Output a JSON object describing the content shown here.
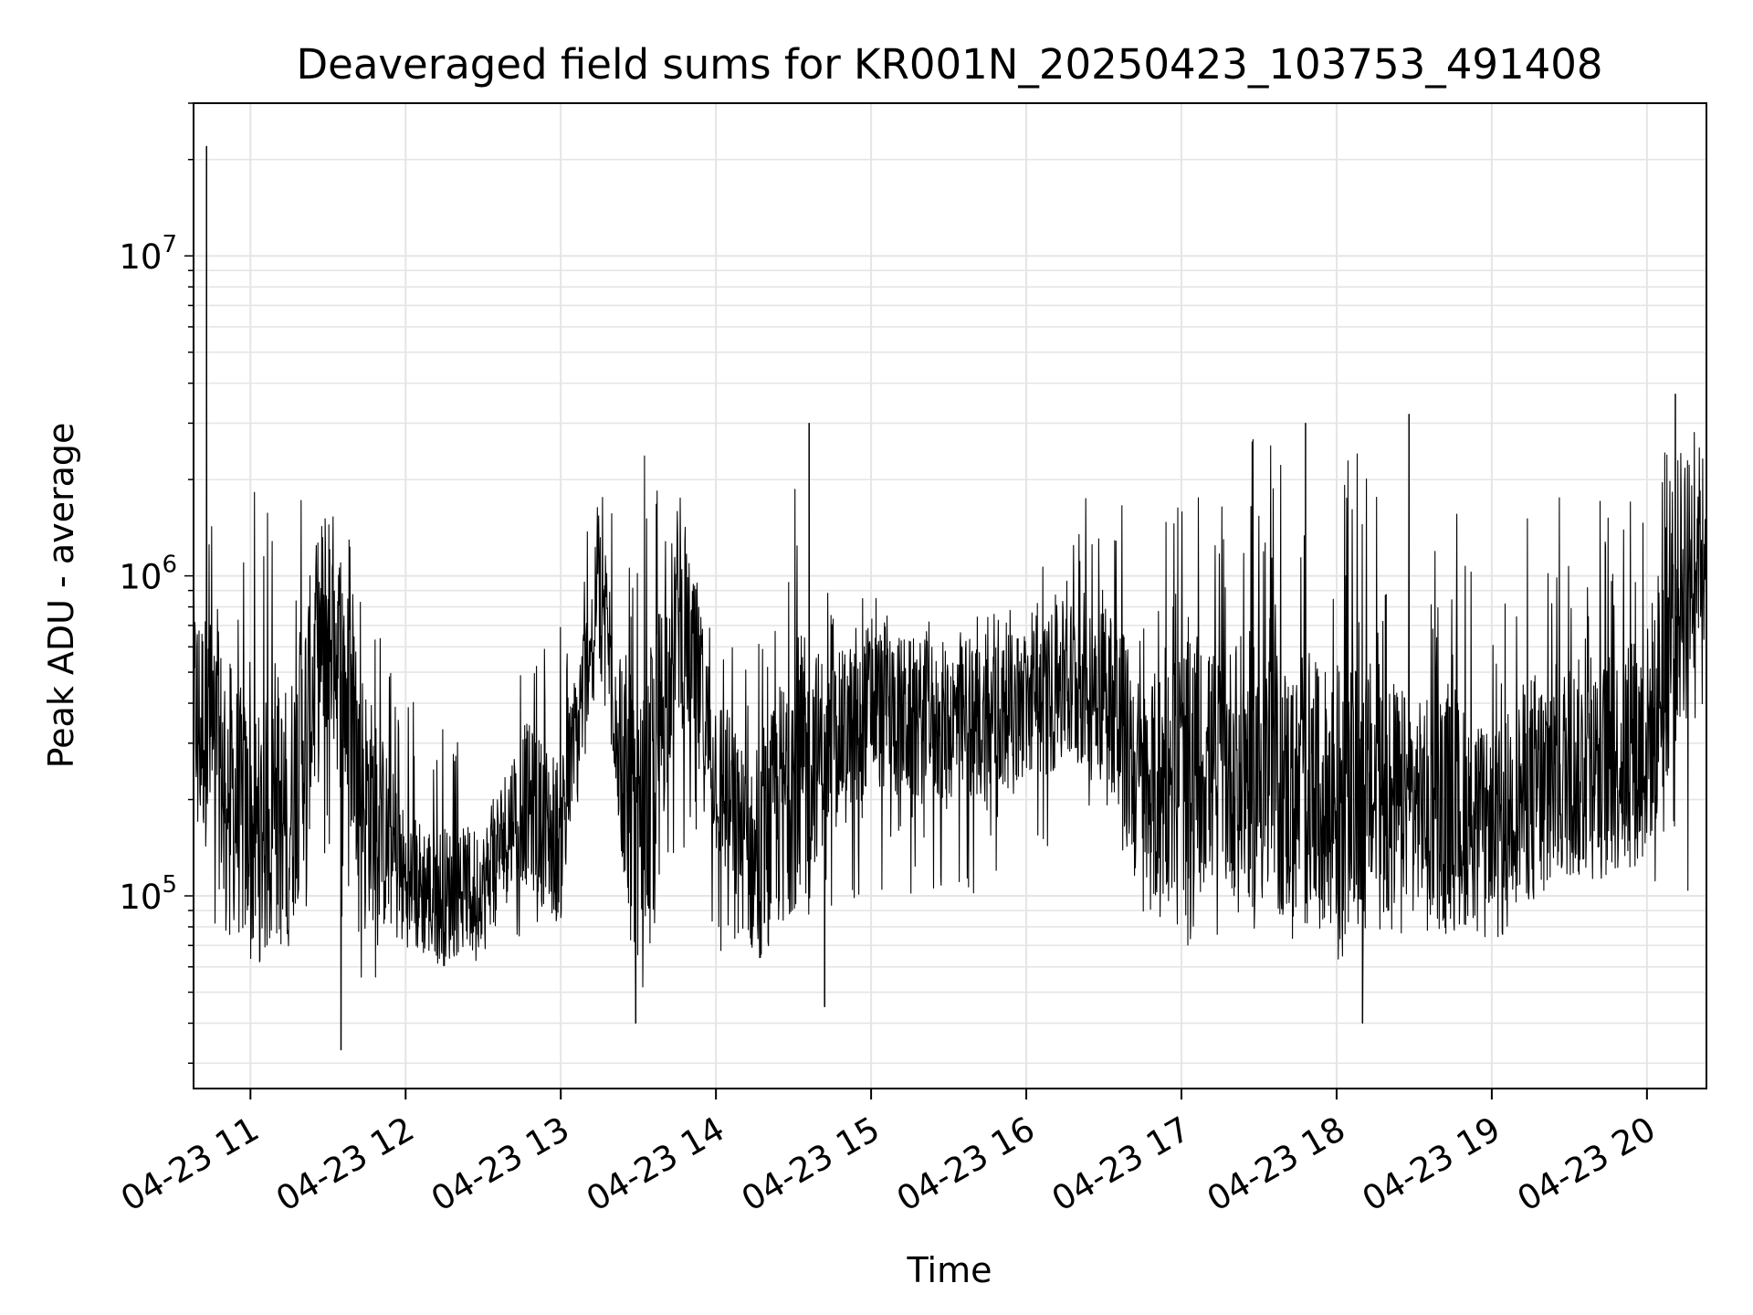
{
  "chart_data": {
    "type": "line",
    "title": "Deaveraged field sums for KR001N_20250423_103753_491408",
    "xlabel": "Time",
    "ylabel": "Peak ADU - average",
    "xlim": [
      "2025-04-23 10:38",
      "2025-04-23 20:23"
    ],
    "ylim": [
      25000,
      30000000
    ],
    "yscale": "log",
    "grid": true,
    "line_color": "#000000",
    "grid_color": "#e5e5e5",
    "x_ticks": [
      "04-23 11",
      "04-23 12",
      "04-23 13",
      "04-23 14",
      "04-23 15",
      "04-23 16",
      "04-23 17",
      "04-23 18",
      "04-23 19",
      "04-23 20"
    ],
    "y_ticks": [
      {
        "value": 100000,
        "base": "10",
        "exp": "5"
      },
      {
        "value": 1000000,
        "base": "10",
        "exp": "6"
      },
      {
        "value": 10000000,
        "base": "10",
        "exp": "7"
      }
    ],
    "series": [
      {
        "x": [
          "2025-04-23 10:38",
          "2025-04-23 10:45",
          "2025-04-23 11:00",
          "2025-04-23 11:15",
          "2025-04-23 11:30",
          "2025-04-23 11:45",
          "2025-04-23 12:00",
          "2025-04-23 12:15",
          "2025-04-23 12:30",
          "2025-04-23 12:45",
          "2025-04-23 13:00",
          "2025-04-23 13:15",
          "2025-04-23 13:30",
          "2025-04-23 13:45",
          "2025-04-23 14:00",
          "2025-04-23 14:15",
          "2025-04-23 14:30",
          "2025-04-23 14:45",
          "2025-04-23 15:00",
          "2025-04-23 15:15",
          "2025-04-23 15:30",
          "2025-04-23 15:45",
          "2025-04-23 16:00",
          "2025-04-23 16:15",
          "2025-04-23 16:30",
          "2025-04-23 16:45",
          "2025-04-23 17:00",
          "2025-04-23 17:15",
          "2025-04-23 17:30",
          "2025-04-23 17:45",
          "2025-04-23 18:00",
          "2025-04-23 18:15",
          "2025-04-23 18:30",
          "2025-04-23 18:45",
          "2025-04-23 19:00",
          "2025-04-23 19:15",
          "2025-04-23 19:30",
          "2025-04-23 19:45",
          "2025-04-23 20:00",
          "2025-04-23 20:15",
          "2025-04-23 20:23"
        ],
        "y": [
          400000,
          300000,
          150000,
          180000,
          800000,
          200000,
          110000,
          100000,
          110000,
          200000,
          150000,
          1000000,
          120000,
          800000,
          250000,
          120000,
          250000,
          300000,
          400000,
          350000,
          350000,
          350000,
          400000,
          450000,
          500000,
          200000,
          250000,
          250000,
          250000,
          200000,
          200000,
          200000,
          200000,
          180000,
          170000,
          220000,
          250000,
          250000,
          300000,
          1100000,
          1400000
        ],
        "low": [
          120000,
          80000,
          60000,
          70000,
          90000,
          40000,
          70000,
          55000,
          60000,
          70000,
          80000,
          500000,
          45000,
          150000,
          60000,
          60000,
          75000,
          90000,
          100000,
          100000,
          100000,
          100000,
          120000,
          150000,
          200000,
          70000,
          70000,
          70000,
          70000,
          70000,
          60000,
          80000,
          70000,
          75000,
          70000,
          90000,
          100000,
          100000,
          110000,
          80000,
          500000
        ],
        "high": [
          2000000,
          2300000,
          1800000,
          2300000,
          2300000,
          900000,
          450000,
          350000,
          250000,
          600000,
          700000,
          2100000,
          2600000,
          2200000,
          600000,
          700000,
          3000000,
          800000,
          900000,
          900000,
          800000,
          800000,
          850000,
          1500000,
          2300000,
          1400000,
          2000000,
          1600000,
          3000000,
          2000000,
          2000000,
          3200000,
          900000,
          1900000,
          600000,
          1900000,
          1800000,
          1900000,
          2500000,
          3700000,
          3200000
        ],
        "spikes": [
          {
            "x": "2025-04-23 10:43",
            "y": 22000000
          },
          {
            "x": "2025-04-23 11:35",
            "y": 33000
          },
          {
            "x": "2025-04-23 13:29",
            "y": 40000
          },
          {
            "x": "2025-04-23 14:36",
            "y": 3000000
          },
          {
            "x": "2025-04-23 14:42",
            "y": 45000
          },
          {
            "x": "2025-04-23 17:48",
            "y": 3000000
          },
          {
            "x": "2025-04-23 18:10",
            "y": 40000
          },
          {
            "x": "2025-04-23 18:28",
            "y": 3200000
          },
          {
            "x": "2025-04-23 20:11",
            "y": 3700000
          }
        ]
      }
    ]
  }
}
